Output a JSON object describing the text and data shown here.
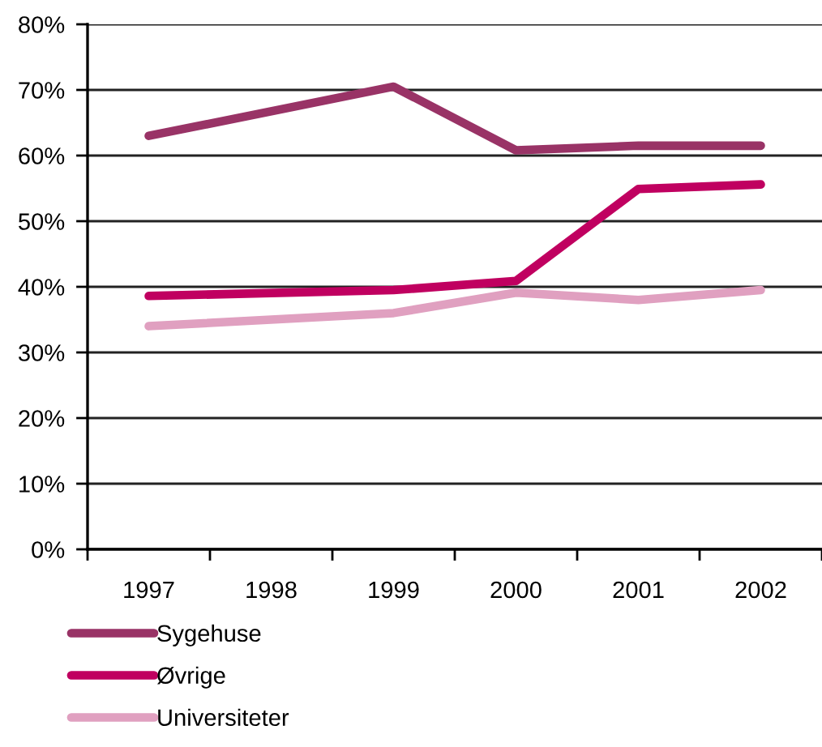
{
  "chart_data": {
    "type": "line",
    "categories": [
      "1997",
      "1998",
      "1999",
      "2000",
      "2001",
      "2002"
    ],
    "series": [
      {
        "name": "Sygehuse",
        "color": "#993366",
        "values": [
          63.0,
          null,
          70.5,
          60.8,
          61.5,
          61.5
        ]
      },
      {
        "name": "Øvrige",
        "color": "#c00060",
        "values": [
          38.6,
          null,
          39.5,
          40.9,
          54.9,
          55.6
        ]
      },
      {
        "name": "Universiteter",
        "color": "#e0a0c0",
        "values": [
          34.0,
          null,
          36.0,
          39.1,
          38.0,
          39.5
        ]
      }
    ],
    "ylim": [
      0,
      80
    ],
    "yticks": [
      {
        "value": 0,
        "label": "0%"
      },
      {
        "value": 10,
        "label": "10%"
      },
      {
        "value": 20,
        "label": "20%"
      },
      {
        "value": 30,
        "label": "30%"
      },
      {
        "value": 40,
        "label": "40%"
      },
      {
        "value": 50,
        "label": "50%"
      },
      {
        "value": 60,
        "label": "60%"
      },
      {
        "value": 70,
        "label": "70%"
      },
      {
        "value": 80,
        "label": "80%"
      }
    ],
    "grid": "y",
    "legend": "bottom left",
    "marker": "none",
    "line_style": "solid"
  }
}
